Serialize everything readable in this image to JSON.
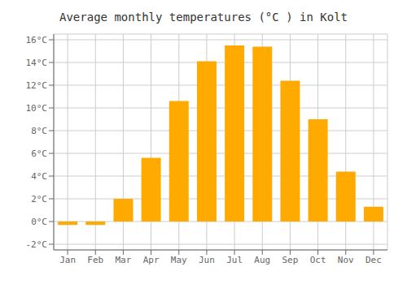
{
  "chart_data": {
    "type": "bar",
    "title": "Average monthly temperatures (°C ) in Kolt",
    "categories": [
      "Jan",
      "Feb",
      "Mar",
      "Apr",
      "May",
      "Jun",
      "Jul",
      "Aug",
      "Sep",
      "Oct",
      "Nov",
      "Dec"
    ],
    "values": [
      -0.3,
      -0.3,
      2.0,
      5.6,
      10.6,
      14.1,
      15.5,
      15.4,
      12.4,
      9.0,
      4.4,
      1.3
    ],
    "color": "#FFAA00",
    "ylim": [
      -2.5,
      16.5
    ],
    "yticks": [
      {
        "value": -2,
        "label": "-2°C"
      },
      {
        "value": 0,
        "label": "0°C"
      },
      {
        "value": 2,
        "label": "2°C"
      },
      {
        "value": 4,
        "label": "4°C"
      },
      {
        "value": 6,
        "label": "6°C"
      },
      {
        "value": 8,
        "label": "8°C"
      },
      {
        "value": 10,
        "label": "10°C"
      },
      {
        "value": 12,
        "label": "12°C"
      },
      {
        "value": 14,
        "label": "14°C"
      },
      {
        "value": 16,
        "label": "16°C"
      }
    ],
    "grid": true
  }
}
